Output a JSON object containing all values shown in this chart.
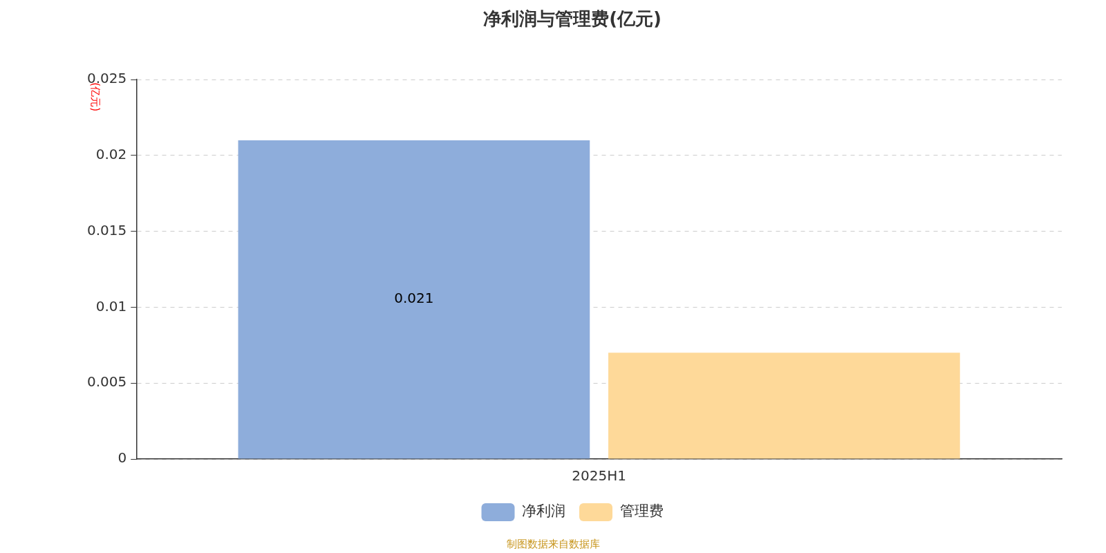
{
  "chart_data": {
    "type": "bar",
    "title": "净利润与管理费(亿元)",
    "ylabel": "(亿元)",
    "categories": [
      "2025H1"
    ],
    "series": [
      {
        "name": "净利润",
        "color": "#8eaddb",
        "values": [
          0.021
        ],
        "value_labels": [
          "0.021"
        ]
      },
      {
        "name": "管理费",
        "color": "#fed999",
        "values": [
          0.007
        ],
        "value_labels": [
          null
        ]
      }
    ],
    "ylim": [
      0,
      0.025
    ],
    "yticks": [
      0,
      0.005,
      0.01,
      0.015,
      0.02,
      0.025
    ],
    "grid": "y",
    "legend": "bottom",
    "annotations": [
      "制图数据来自数据库"
    ]
  }
}
